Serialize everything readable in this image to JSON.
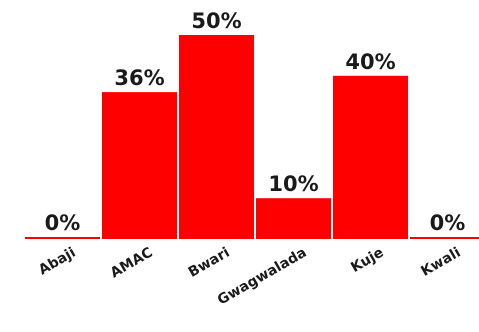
{
  "chart_data": {
    "type": "bar",
    "categories": [
      "Abaji",
      "AMAC",
      "Bwari",
      "Gwagwalada",
      "Kuje",
      "Kwali"
    ],
    "values": [
      0,
      36,
      50,
      10,
      40,
      0
    ],
    "data_labels": [
      "0%",
      "36%",
      "50%",
      "10%",
      "40%",
      "0%"
    ],
    "title": "",
    "xlabel": "",
    "ylabel": "",
    "ylim": [
      0,
      50
    ],
    "grid": false,
    "bar_color": "#ff0000"
  }
}
